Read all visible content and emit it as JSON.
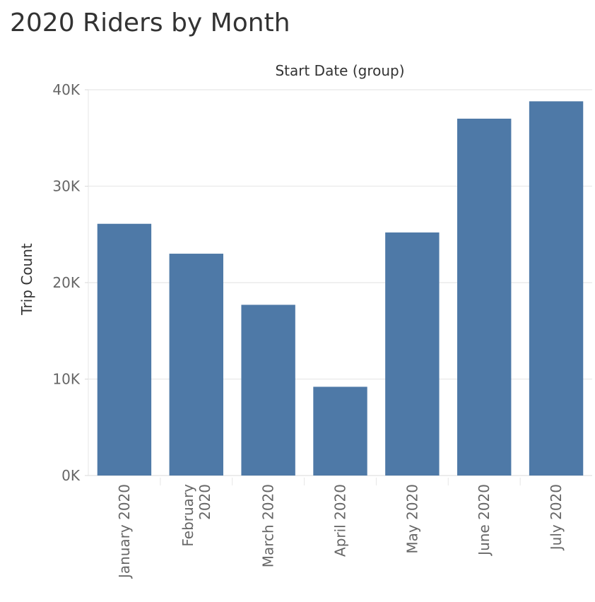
{
  "chart_data": {
    "type": "bar",
    "title": "2020 Riders by Month",
    "xlabel": "Start Date (group)",
    "ylabel": "Trip Count",
    "categories": [
      "January 2020",
      "February 2020",
      "March 2020",
      "April 2020",
      "May 2020",
      "June 2020",
      "July 2020"
    ],
    "category_label_lines": [
      [
        "January 2020"
      ],
      [
        "February",
        "2020"
      ],
      [
        "March 2020"
      ],
      [
        "April 2020"
      ],
      [
        "May 2020"
      ],
      [
        "June 2020"
      ],
      [
        "July 2020"
      ]
    ],
    "values": [
      26100,
      23000,
      17700,
      9200,
      25200,
      37000,
      38800
    ],
    "ylim": [
      0,
      40000
    ],
    "yticks": [
      0,
      10000,
      20000,
      30000,
      40000
    ],
    "ytick_labels": [
      "0K",
      "10K",
      "20K",
      "30K",
      "40K"
    ],
    "grid": true,
    "legend": "none",
    "bar_color": "#4e79a7"
  }
}
